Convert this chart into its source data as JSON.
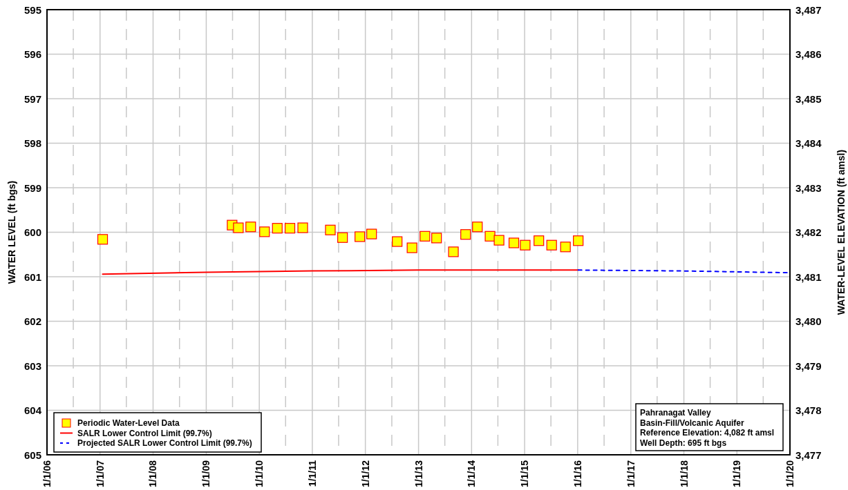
{
  "chart_data": {
    "type": "scatter",
    "ylabel": "WATER LEVEL (ft bgs)",
    "y2label": "WATER-LEVEL ELEVATION (ft amsl)",
    "xlim": [
      "2006-01-01",
      "2020-01-01"
    ],
    "xticks": [
      {
        "value": "2006-01-01",
        "label": "1/1/06"
      },
      {
        "value": "2006-07-01",
        "label": null
      },
      {
        "value": "2007-01-01",
        "label": "1/1/07"
      },
      {
        "value": "2007-07-01",
        "label": null
      },
      {
        "value": "2008-01-01",
        "label": "1/1/08"
      },
      {
        "value": "2008-07-01",
        "label": null
      },
      {
        "value": "2009-01-01",
        "label": "1/1/09"
      },
      {
        "value": "2009-07-01",
        "label": null
      },
      {
        "value": "2010-01-01",
        "label": "1/1/10"
      },
      {
        "value": "2010-07-01",
        "label": null
      },
      {
        "value": "2011-01-01",
        "label": "1/1/11"
      },
      {
        "value": "2011-07-01",
        "label": null
      },
      {
        "value": "2012-01-01",
        "label": "1/1/12"
      },
      {
        "value": "2012-07-01",
        "label": null
      },
      {
        "value": "2013-01-01",
        "label": "1/1/13"
      },
      {
        "value": "2013-07-01",
        "label": null
      },
      {
        "value": "2014-01-01",
        "label": "1/1/14"
      },
      {
        "value": "2014-07-01",
        "label": null
      },
      {
        "value": "2015-01-01",
        "label": "1/1/15"
      },
      {
        "value": "2015-07-01",
        "label": null
      },
      {
        "value": "2016-01-01",
        "label": "1/1/16"
      },
      {
        "value": "2016-07-01",
        "label": null
      },
      {
        "value": "2017-01-01",
        "label": "1/1/17"
      },
      {
        "value": "2017-07-01",
        "label": null
      },
      {
        "value": "2018-01-01",
        "label": "1/1/18"
      },
      {
        "value": "2018-07-01",
        "label": null
      },
      {
        "value": "2019-01-01",
        "label": "1/1/19"
      },
      {
        "value": "2019-07-01",
        "label": null
      },
      {
        "value": "2020-01-01",
        "label": "1/1/20"
      }
    ],
    "ylim": [
      605,
      595
    ],
    "yticks": [
      595,
      596,
      597,
      598,
      599,
      600,
      601,
      602,
      603,
      604,
      605
    ],
    "y2lim": [
      3477,
      3487
    ],
    "y2ticks": [
      {
        "value": 3477,
        "label": "3,477"
      },
      {
        "value": 3478,
        "label": "3,478"
      },
      {
        "value": 3479,
        "label": "3,479"
      },
      {
        "value": 3480,
        "label": "3,480"
      },
      {
        "value": 3481,
        "label": "3,481"
      },
      {
        "value": 3482,
        "label": "3,482"
      },
      {
        "value": 3483,
        "label": "3,483"
      },
      {
        "value": 3484,
        "label": "3,484"
      },
      {
        "value": 3485,
        "label": "3,485"
      },
      {
        "value": 3486,
        "label": "3,486"
      },
      {
        "value": 3487,
        "label": "3,487"
      }
    ],
    "grid": true,
    "legend": "bottom left",
    "series": [
      {
        "name": "Periodic Water-Level Data",
        "marker": "square",
        "color": "#ffff00",
        "x": [
          "2007-01-19",
          "2009-06-28",
          "2009-08-10",
          "2009-11-03",
          "2010-02-06",
          "2010-05-05",
          "2010-07-31",
          "2010-10-27",
          "2011-05-05",
          "2011-07-28",
          "2011-11-24",
          "2012-02-13",
          "2012-08-07",
          "2012-11-17",
          "2013-02-14",
          "2013-05-05",
          "2013-08-29",
          "2013-11-21",
          "2014-02-10",
          "2014-05-08",
          "2014-07-09",
          "2014-10-19",
          "2015-01-05",
          "2015-04-09",
          "2015-07-06",
          "2015-10-09",
          "2016-01-05"
        ],
        "values": [
          600.16,
          599.84,
          599.9,
          599.88,
          599.99,
          599.91,
          599.91,
          599.9,
          599.95,
          600.12,
          600.1,
          600.04,
          600.21,
          600.35,
          600.09,
          600.13,
          600.44,
          600.05,
          599.88,
          600.09,
          600.18,
          600.24,
          600.29,
          600.19,
          600.29,
          600.33,
          600.19
        ]
      },
      {
        "name": "SALR Lower Control Limit (99.7%)",
        "type": "line",
        "line_style": "solid",
        "marker": "none",
        "color": "#ff0000",
        "x": [
          "2007-01-19",
          "2009-01-01",
          "2011-01-01",
          "2013-01-01",
          "2016-01-05"
        ],
        "values": [
          600.94,
          600.9,
          600.87,
          600.85,
          600.85
        ]
      },
      {
        "name": "Projected SALR Lower Control Limit (99.7%)",
        "type": "line",
        "line_style": "dashed",
        "marker": "none",
        "color": "#0000ff",
        "x": [
          "2016-01-05",
          "2018-01-01",
          "2020-01-01"
        ],
        "values": [
          600.85,
          600.87,
          600.91
        ]
      }
    ],
    "annotations": [
      "Pahranagat Valley",
      "Basin-Fill/Volcanic Aquifer",
      "Reference Elevation: 4,082 ft amsl",
      "Well Depth: 695 ft bgs"
    ]
  }
}
